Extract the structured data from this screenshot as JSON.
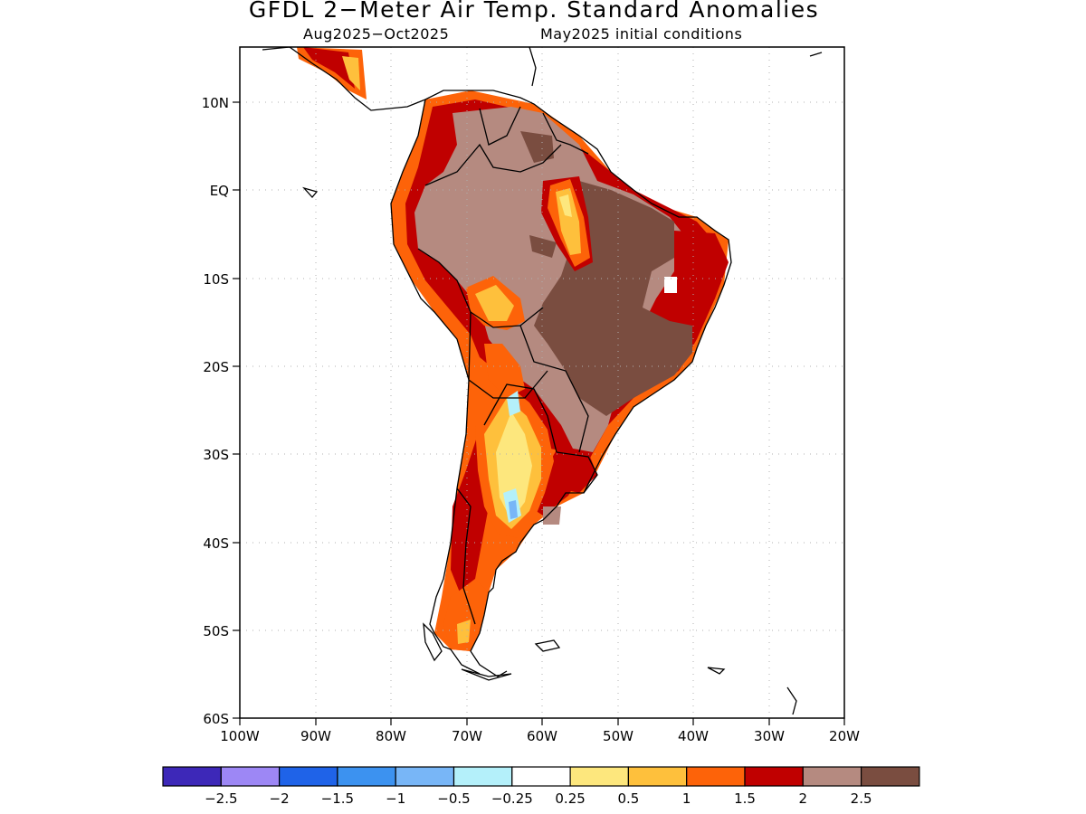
{
  "title": "GFDL 2−Meter Air Temp. Standard Anomalies",
  "subtitle_left": "Aug2025−Oct2025",
  "subtitle_right": "May2025 initial conditions",
  "lat_labels": [
    "10N",
    "EQ",
    "10S",
    "20S",
    "30S",
    "40S",
    "50S",
    "60S"
  ],
  "lon_labels": [
    "100W",
    "90W",
    "80W",
    "70W",
    "60W",
    "50W",
    "40W",
    "30W",
    "20W"
  ],
  "colorbar": {
    "colors": [
      "#3d28b8",
      "#9d87f5",
      "#1f63e8",
      "#3c92f0",
      "#78b6f7",
      "#b4f0fa",
      "#ffffff",
      "#fde77d",
      "#fec03c",
      "#fd6309",
      "#c00000",
      "#b58a80",
      "#7a4d40"
    ],
    "labels": [
      "−2.5",
      "−2",
      "−1.5",
      "−1",
      "−0.5",
      "−0.25",
      "0.25",
      "0.5",
      "1",
      "1.5",
      "2",
      "2.5"
    ]
  }
}
